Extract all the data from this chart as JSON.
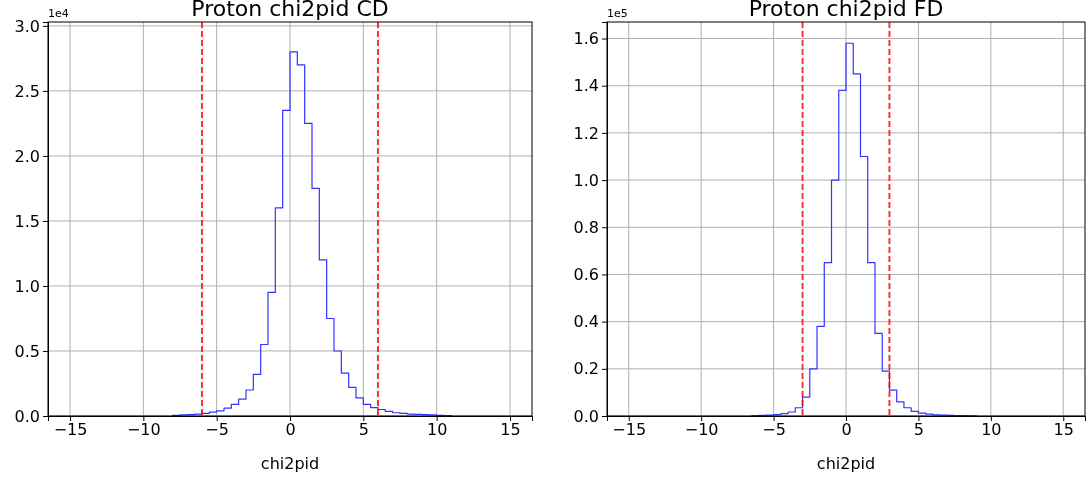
{
  "chart_data": [
    {
      "type": "histogram",
      "title": "Proton chi2pid CD",
      "xlabel": "chi2pid",
      "annotations": [
        "1e4"
      ],
      "color": "#3333ff",
      "bins": [
        -8,
        -7.5,
        -7,
        -6.5,
        -6,
        -5.5,
        -5,
        -4.5,
        -4,
        -3.5,
        -3,
        -2.5,
        -2,
        -1.5,
        -1,
        -0.5,
        0,
        0.5,
        1,
        1.5,
        2,
        2.5,
        3,
        3.5,
        4,
        4.5,
        5,
        5.5,
        6,
        6.5,
        7,
        7.5,
        8,
        8.5,
        9,
        9.5,
        10,
        10.5,
        11
      ],
      "values": [
        0.005,
        0.008,
        0.01,
        0.015,
        0.02,
        0.03,
        0.04,
        0.06,
        0.09,
        0.13,
        0.2,
        0.32,
        0.55,
        0.95,
        1.6,
        2.35,
        2.8,
        2.7,
        2.25,
        1.75,
        1.2,
        0.75,
        0.5,
        0.33,
        0.22,
        0.14,
        0.09,
        0.065,
        0.05,
        0.035,
        0.025,
        0.02,
        0.015,
        0.012,
        0.01,
        0.008,
        0.005,
        0.003
      ],
      "xlim": [
        -16.5,
        16.5
      ],
      "xticks": [
        -15,
        -10,
        -5,
        0,
        5,
        10,
        15
      ],
      "ylim": [
        0,
        3.03
      ],
      "yticks": [
        {
          "value": 0,
          "label": "0.0"
        },
        {
          "value": 0.5,
          "label": "0.5"
        },
        {
          "value": 1,
          "label": "1.0"
        },
        {
          "value": 1.5,
          "label": "1.5"
        },
        {
          "value": 2,
          "label": "2.0"
        },
        {
          "value": 2.5,
          "label": "2.5"
        },
        {
          "value": 3,
          "label": "3.0"
        }
      ],
      "grid": true,
      "ref_lines": [
        {
          "axis": "x",
          "value": -6,
          "color": "#ff0000",
          "line_style": "dashed"
        },
        {
          "axis": "x",
          "value": 6,
          "color": "#ff0000",
          "line_style": "dashed"
        }
      ]
    },
    {
      "type": "histogram",
      "title": "Proton chi2pid FD",
      "xlabel": "chi2pid",
      "annotations": [
        "1e5"
      ],
      "color": "#3333ff",
      "bins": [
        -6.5,
        -6,
        -5.5,
        -5,
        -4.5,
        -4,
        -3.5,
        -3,
        -2.5,
        -2,
        -1.5,
        -1,
        -0.5,
        0,
        0.5,
        1,
        1.5,
        2,
        2.5,
        3,
        3.5,
        4,
        4.5,
        5,
        5.5,
        6,
        6.5,
        7,
        7.5,
        8,
        8.5,
        9
      ],
      "values": [
        0.002,
        0.003,
        0.004,
        0.006,
        0.01,
        0.017,
        0.035,
        0.08,
        0.2,
        0.38,
        0.65,
        1.0,
        1.38,
        1.58,
        1.45,
        1.1,
        0.65,
        0.35,
        0.19,
        0.11,
        0.06,
        0.035,
        0.02,
        0.012,
        0.008,
        0.005,
        0.004,
        0.003,
        0.002,
        0.002,
        0.001
      ],
      "xlim": [
        -16.5,
        16.5
      ],
      "xticks": [
        -15,
        -10,
        -5,
        0,
        5,
        10,
        15
      ],
      "ylim": [
        0,
        1.67
      ],
      "yticks": [
        {
          "value": 0,
          "label": "0.0"
        },
        {
          "value": 0.2,
          "label": "0.2"
        },
        {
          "value": 0.4,
          "label": "0.4"
        },
        {
          "value": 0.6,
          "label": "0.6"
        },
        {
          "value": 0.8,
          "label": "0.8"
        },
        {
          "value": 1,
          "label": "1.0"
        },
        {
          "value": 1.2,
          "label": "1.2"
        },
        {
          "value": 1.4,
          "label": "1.4"
        },
        {
          "value": 1.6,
          "label": "1.6"
        }
      ],
      "grid": true,
      "ref_lines": [
        {
          "axis": "x",
          "value": -3,
          "color": "#ff0000",
          "line_style": "dashed"
        },
        {
          "axis": "x",
          "value": 3,
          "color": "#ff0000",
          "line_style": "dashed"
        }
      ]
    }
  ]
}
